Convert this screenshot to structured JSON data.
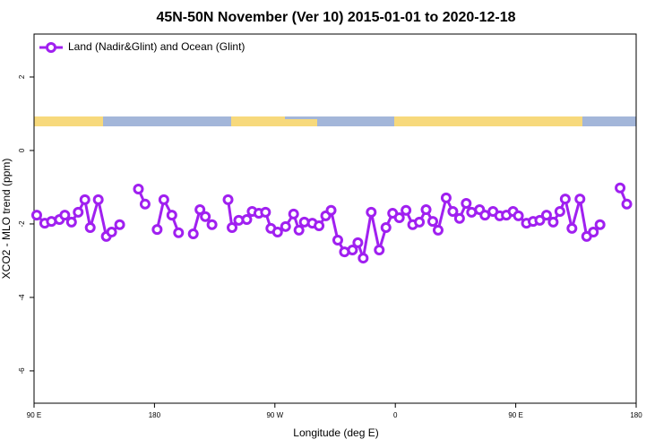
{
  "chart_data": {
    "type": "line",
    "title": "45N-50N November (Ver 10)   2015-01-01 to 2020-12-18",
    "xlabel": "Longitude (deg E)",
    "ylabel": "XCO2 - MLO trend (ppm)",
    "legend_loc": "upper left",
    "x": [
      -268,
      -262,
      -257,
      -251,
      -247,
      -242,
      -237,
      -232,
      -228,
      -222,
      -216,
      -212,
      -206,
      -199,
      -192,
      -187,
      -182,
      -178,
      -173,
      -167,
      -162,
      -156,
      -151,
      -146,
      -142,
      -137,
      -131,
      -125,
      -122,
      -117,
      -111,
      -107,
      -102,
      -97,
      -93,
      -88,
      -82,
      -76,
      -72,
      -68,
      -62,
      -57,
      -52,
      -48,
      -43,
      -38,
      -32,
      -28,
      -24,
      -18,
      -12,
      -7,
      -2,
      3,
      8,
      13,
      18,
      23,
      28,
      32,
      38,
      43,
      48,
      53,
      57,
      63,
      67,
      73,
      78,
      83,
      88,
      92,
      98,
      103,
      108,
      113,
      118,
      123,
      127,
      132,
      138,
      143,
      148,
      153,
      160,
      168,
      173
    ],
    "series": [
      {
        "name": "Land (Nadir&Glint) and Ocean (Glint)",
        "color": "#a020f0",
        "values": [
          -1.76,
          -1.98,
          -1.93,
          -1.88,
          -1.76,
          -1.95,
          -1.68,
          -1.34,
          -2.1,
          -1.34,
          -2.34,
          -2.22,
          -2.02,
          null,
          -1.05,
          -1.46,
          null,
          -2.15,
          -1.34,
          -1.76,
          -2.24,
          null,
          -2.27,
          -1.61,
          -1.8,
          -2.02,
          null,
          -1.34,
          -2.1,
          -1.9,
          -1.88,
          -1.66,
          -1.71,
          -1.68,
          -2.12,
          -2.22,
          -2.07,
          -1.73,
          -2.17,
          -1.95,
          -1.98,
          -2.05,
          -1.78,
          -1.63,
          -2.44,
          -2.76,
          -2.71,
          -2.51,
          -2.93,
          -1.68,
          -2.71,
          -2.1,
          -1.71,
          -1.83,
          -1.63,
          -2.02,
          -1.95,
          -1.61,
          -1.93,
          -2.17,
          -1.29,
          -1.66,
          -1.85,
          -1.44,
          -1.68,
          -1.61,
          -1.76,
          -1.66,
          -1.78,
          -1.76,
          -1.66,
          -1.78,
          -1.98,
          -1.93,
          -1.9,
          -1.76,
          -1.95,
          -1.66,
          -1.32,
          -2.12,
          -1.32,
          -2.34,
          -2.22,
          -2.02,
          null,
          -1.02,
          -1.46
        ]
      }
    ],
    "xlim": [
      -270,
      180
    ],
    "xticks": [
      {
        "value": -270,
        "label": "90 E"
      },
      {
        "value": -180,
        "label": "180"
      },
      {
        "value": -90,
        "label": "90 W"
      },
      0,
      {
        "value": 90,
        "label": "90 E"
      },
      180
    ],
    "ylim": [
      -6.88,
      3.17
    ],
    "yticks": [
      2,
      0,
      -2,
      -4,
      -6
    ]
  }
}
